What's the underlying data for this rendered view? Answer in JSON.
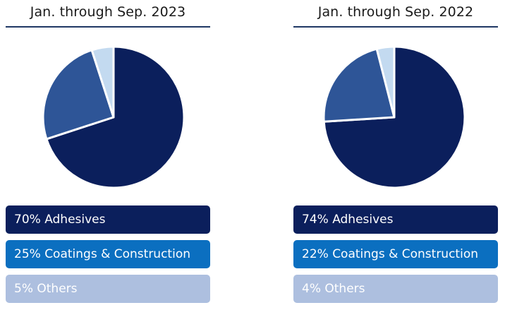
{
  "chart_data": [
    {
      "type": "pie",
      "title": "Jan. through Sep. 2023",
      "slices": [
        {
          "label": "Adhesives",
          "value": 70,
          "text": "70% Adhesives",
          "color": "#0b1f5c",
          "text_color": "#ffffff"
        },
        {
          "label": "Coatings & Construction",
          "value": 25,
          "text": "25% Coatings & Construction",
          "color": "#2e5597",
          "text_color": "#ffffff"
        },
        {
          "label": "Others",
          "value": 5,
          "text": "5% Others",
          "color": "#c3daf0",
          "text_color": "#ffffff"
        }
      ],
      "legend_colors": [
        "#0b1f5c",
        "#0b6fc0",
        "#adbfdf"
      ]
    },
    {
      "type": "pie",
      "title": "Jan. through Sep. 2022",
      "slices": [
        {
          "label": "Adhesives",
          "value": 74,
          "text": "74% Adhesives",
          "color": "#0b1f5c",
          "text_color": "#ffffff"
        },
        {
          "label": "Coatings & Construction",
          "value": 22,
          "text": "22% Coatings & Construction",
          "color": "#2e5597",
          "text_color": "#ffffff"
        },
        {
          "label": "Others",
          "value": 4,
          "text": "4% Others",
          "color": "#c3daf0",
          "text_color": "#ffffff"
        }
      ],
      "legend_colors": [
        "#0b1f5c",
        "#0b6fc0",
        "#adbfdf"
      ]
    }
  ]
}
